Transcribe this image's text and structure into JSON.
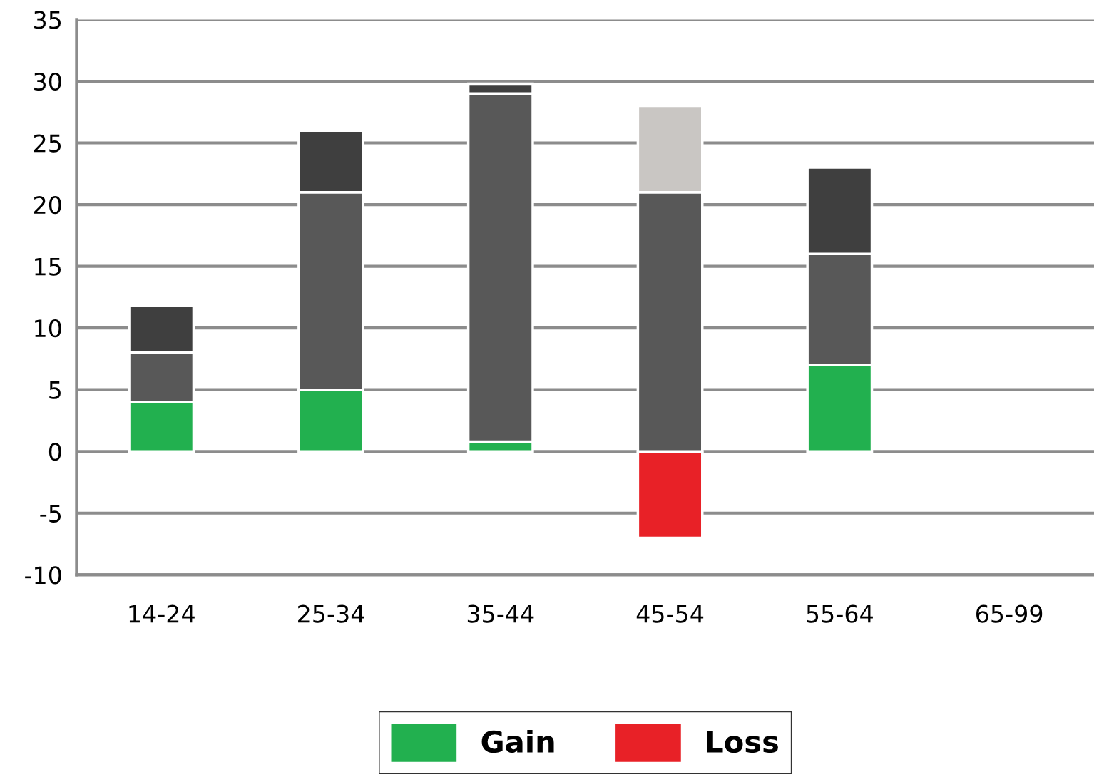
{
  "chart_data": {
    "type": "bar",
    "stacked": true,
    "categories": [
      "14-24",
      "25-34",
      "35-44",
      "45-54",
      "55-64",
      "65-99"
    ],
    "series": [
      {
        "name": "Gain",
        "color": "#22b04f",
        "values": [
          4,
          5,
          0.8,
          null,
          7,
          null
        ]
      },
      {
        "name": "Loss",
        "color": "#e82127",
        "values": [
          null,
          null,
          null,
          -7,
          null,
          null
        ]
      },
      {
        "color": "#585858",
        "values": [
          4,
          16,
          28.2,
          21,
          9,
          null
        ]
      },
      {
        "color": "#3f3f3f",
        "values": [
          3.8,
          5,
          0.8,
          null,
          7,
          null
        ]
      },
      {
        "color": "#c9c6c3",
        "values": [
          null,
          null,
          null,
          7,
          null,
          null
        ]
      }
    ],
    "ylim": [
      -10,
      35
    ],
    "yticks": [
      -10,
      -5,
      0,
      5,
      10,
      15,
      20,
      25,
      30,
      35
    ],
    "grid": "y",
    "legend": "bottom"
  }
}
